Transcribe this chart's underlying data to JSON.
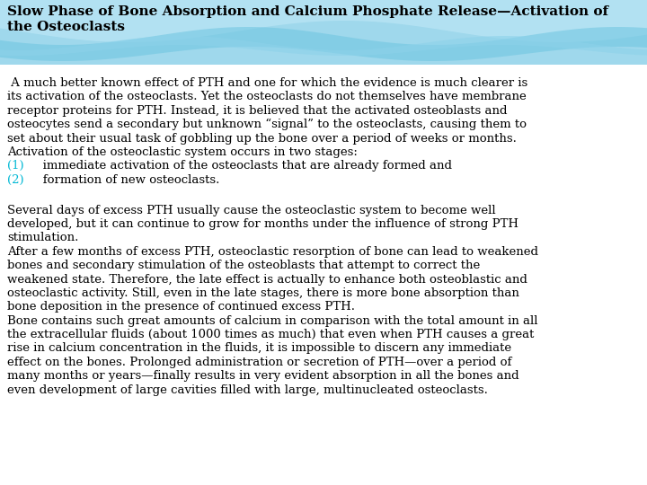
{
  "title_line1": "Slow Phase of Bone Absorption and Calcium Phosphate Release—Activation of",
  "title_line2": "the Osteoclasts",
  "title_color": "#000000",
  "background_color": "#ffffff",
  "body_text_color": "#000000",
  "list_number_color": "#00b8d4",
  "title_fontsize": 11.0,
  "body_fontsize": 9.5,
  "header_bg": "#9fd8ec",
  "wave1_color": "#b8e4f4",
  "wave2_color": "#6dc5e0",
  "wave3_color": "#8dd2ea",
  "paragraph1_line1": " A much better known effect of PTH and one for which the evidence is much clearer is",
  "paragraph1_line2": "its activation of the osteoclasts. Yet the osteoclasts do not themselves have membrane",
  "paragraph1_line3": "receptor proteins for PTH. Instead, it is believed that the activated osteoblasts and",
  "paragraph1_line4": "osteocytes send a secondary but unknown “signal” to the osteoclasts, causing them to",
  "paragraph1_line5": "set about their usual task of gobbling up the bone over a period of weeks or months.",
  "paragraph2": "Activation of the osteoclastic system occurs in two stages:",
  "list_num1": "(1)",
  "list_text1": "   immediate activation of the osteoclasts that are already formed and",
  "list_num2": "(2)",
  "list_text2": "   formation of new osteoclasts.",
  "paragraph3_line1": "Several days of excess PTH usually cause the osteoclastic system to become well",
  "paragraph3_line2": "developed, but it can continue to grow for months under the influence of strong PTH",
  "paragraph3_line3": "stimulation.",
  "paragraph4_line1": "After a few months of excess PTH, osteoclastic resorption of bone can lead to weakened",
  "paragraph4_line2": "bones and secondary stimulation of the osteoblasts that attempt to correct the",
  "paragraph4_line3": "weakened state. Therefore, the late effect is actually to enhance both osteoblastic and",
  "paragraph4_line4": "osteoclastic activity. Still, even in the late stages, there is more bone absorption than",
  "paragraph4_line5": "bone deposition in the presence of continued excess PTH.",
  "paragraph5_line1": "Bone contains such great amounts of calcium in comparison with the total amount in all",
  "paragraph5_line2": "the extracellular fluids (about 1000 times as much) that even when PTH causes a great",
  "paragraph5_line3": "rise in calcium concentration in the fluids, it is impossible to discern any immediate",
  "paragraph5_line4": "effect on the bones. Prolonged administration or secretion of PTH—over a period of",
  "paragraph5_line5": "many months or years—finally results in very evident absorption in all the bones and",
  "paragraph5_line6": "even development of large cavities filled with large, multinucleated osteoclasts."
}
